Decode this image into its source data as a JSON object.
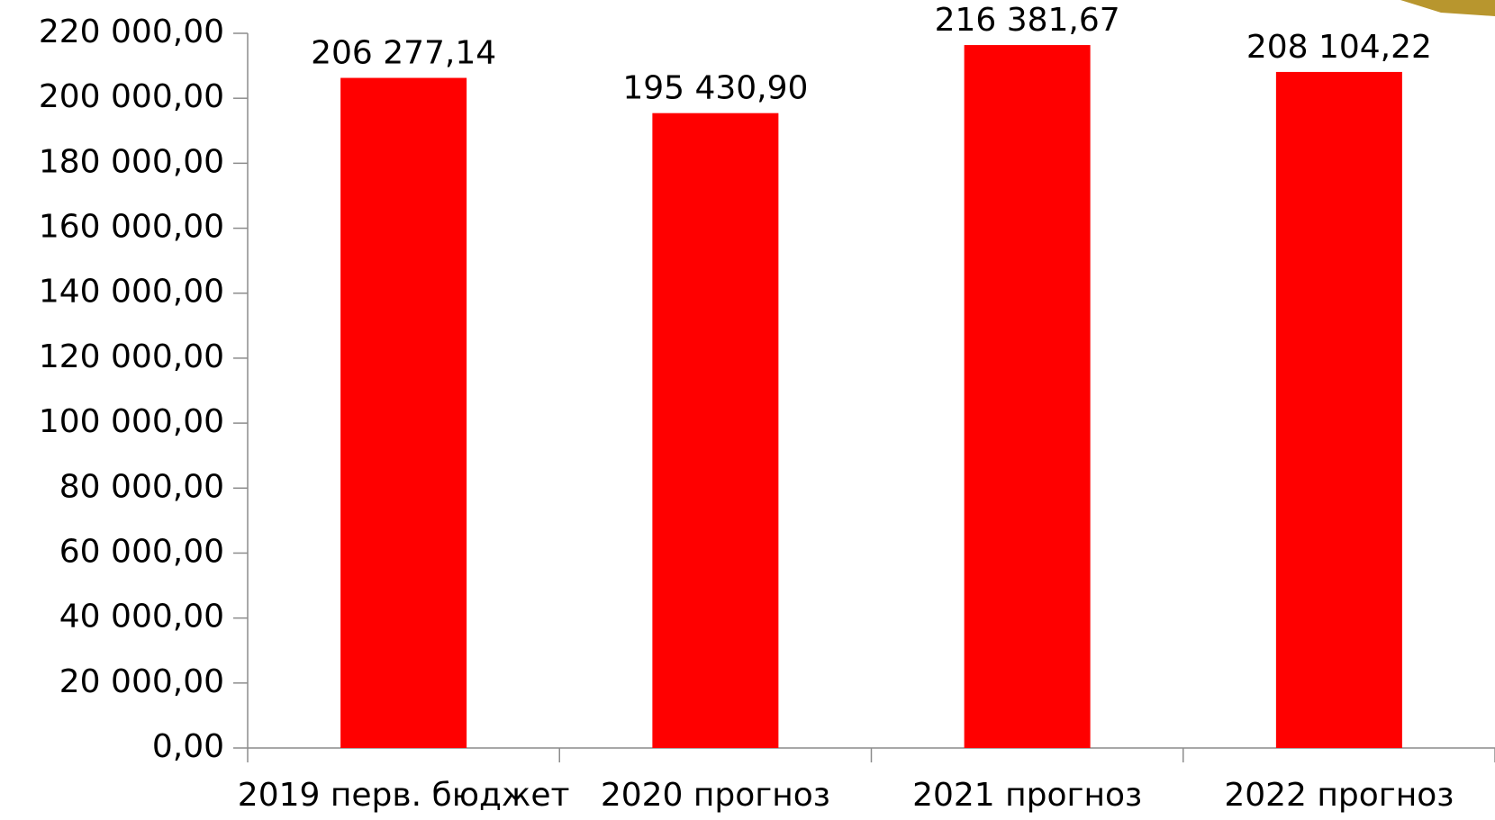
{
  "chart_data": {
    "type": "bar",
    "categories": [
      "2019 перв. бюджет",
      "2020 прогноз",
      "2021 прогноз",
      "2022 прогноз"
    ],
    "values": [
      206277.14,
      195430.9,
      216381.67,
      208104.22
    ],
    "value_labels": [
      "206 277,14",
      "195 430,90",
      "216 381,67",
      "208 104,22"
    ],
    "color": "#ff0000",
    "ylim": [
      0,
      220000
    ],
    "yticks": [
      {
        "value": 0,
        "label": "0,00"
      },
      {
        "value": 20000,
        "label": "20 000,00"
      },
      {
        "value": 40000,
        "label": "40 000,00"
      },
      {
        "value": 60000,
        "label": "60 000,00"
      },
      {
        "value": 80000,
        "label": "80 000,00"
      },
      {
        "value": 100000,
        "label": "100 000,00"
      },
      {
        "value": 120000,
        "label": "120 000,00"
      },
      {
        "value": 140000,
        "label": "140 000,00"
      },
      {
        "value": 160000,
        "label": "160 000,00"
      },
      {
        "value": 180000,
        "label": "180 000,00"
      },
      {
        "value": 200000,
        "label": "200 000,00"
      },
      {
        "value": 220000,
        "label": "220 000,00"
      }
    ],
    "grid": false
  }
}
